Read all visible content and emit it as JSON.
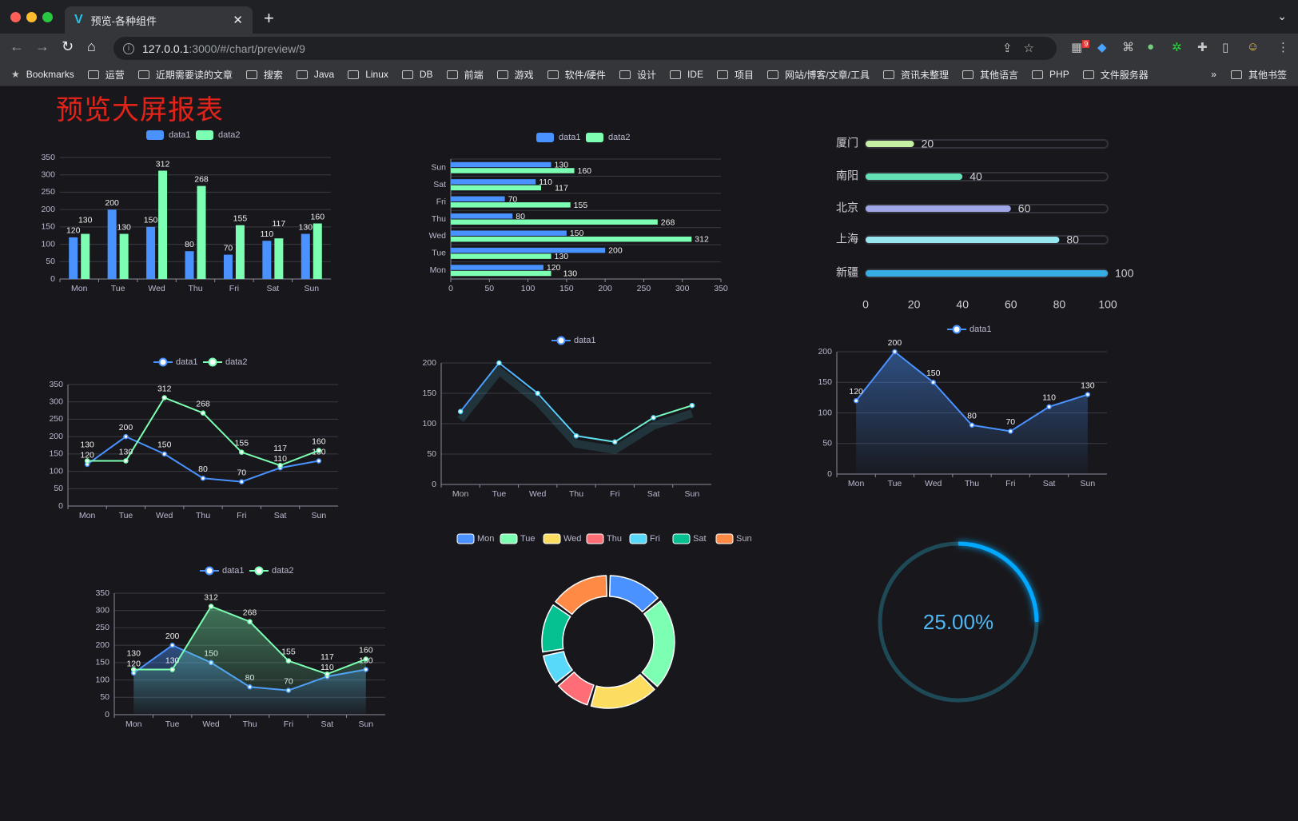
{
  "browser": {
    "tab_title": "预览-各种组件",
    "url_host": "127.0.0.1",
    "url_rest": ":3000/#/chart/preview/9",
    "extension_badge": "9",
    "bookmarks": [
      "Bookmarks",
      "运营",
      "近期需要读的文章",
      "搜索",
      "Java",
      "Linux",
      "DB",
      "前端",
      "游戏",
      "软件/硬件",
      "设计",
      "IDE",
      "项目",
      "网站/博客/文章/工具",
      "资讯未整理",
      "其他语言",
      "PHP",
      "文件服务器"
    ],
    "more_bookmarks": "»",
    "other_bookmarks": "其他书签"
  },
  "page": {
    "title": "预览大屏报表"
  },
  "colors": {
    "data1": "#4992ff",
    "data2": "#7cffb2",
    "background": "#18181c",
    "title": "#e2231a",
    "gauge": "#00a8ff"
  },
  "chart_data": [
    {
      "type": "bar",
      "categories": [
        "Mon",
        "Tue",
        "Wed",
        "Thu",
        "Fri",
        "Sat",
        "Sun"
      ],
      "ylim": [
        0,
        350
      ],
      "yticks": [
        0,
        50,
        100,
        150,
        200,
        250,
        300,
        350
      ],
      "legend": "top",
      "series": [
        {
          "name": "data1",
          "values": [
            120,
            200,
            150,
            80,
            70,
            110,
            130
          ]
        },
        {
          "name": "data2",
          "values": [
            130,
            130,
            312,
            268,
            155,
            117,
            160
          ]
        }
      ]
    },
    {
      "type": "bar",
      "orientation": "horizontal",
      "categories": [
        "Mon",
        "Tue",
        "Wed",
        "Thu",
        "Fri",
        "Sat",
        "Sun"
      ],
      "xlim": [
        0,
        350
      ],
      "xticks": [
        0,
        50,
        100,
        150,
        200,
        250,
        300,
        350
      ],
      "legend": "top",
      "series": [
        {
          "name": "data1",
          "values": [
            120,
            200,
            150,
            80,
            70,
            110,
            130
          ]
        },
        {
          "name": "data2",
          "values": [
            130,
            130,
            312,
            268,
            155,
            117,
            160
          ]
        }
      ]
    },
    {
      "type": "bar",
      "orientation": "horizontal",
      "style": "progress",
      "categories": [
        "厦门",
        "南阳",
        "北京",
        "上海",
        "新疆"
      ],
      "values": [
        20,
        40,
        60,
        80,
        100
      ],
      "xlim": [
        0,
        100
      ],
      "xticks": [
        0,
        20,
        40,
        60,
        80,
        100
      ],
      "colors": [
        "#c5f0a4",
        "#62e0b4",
        "#9ea6e8",
        "#96e8ee",
        "#36aee4"
      ]
    },
    {
      "type": "line",
      "categories": [
        "Mon",
        "Tue",
        "Wed",
        "Thu",
        "Fri",
        "Sat",
        "Sun"
      ],
      "ylim": [
        0,
        350
      ],
      "yticks": [
        0,
        50,
        100,
        150,
        200,
        250,
        300,
        350
      ],
      "legend": "top",
      "series": [
        {
          "name": "data1",
          "values": [
            120,
            200,
            150,
            80,
            70,
            110,
            130
          ]
        },
        {
          "name": "data2",
          "values": [
            130,
            130,
            312,
            268,
            155,
            117,
            160
          ]
        }
      ]
    },
    {
      "type": "line",
      "categories": [
        "Mon",
        "Tue",
        "Wed",
        "Thu",
        "Fri",
        "Sat",
        "Sun"
      ],
      "ylim": [
        0,
        200
      ],
      "yticks": [
        0,
        50,
        100,
        150,
        200
      ],
      "legend": "top",
      "series": [
        {
          "name": "data1",
          "values": [
            120,
            200,
            150,
            80,
            70,
            110,
            130
          ]
        }
      ]
    },
    {
      "type": "area",
      "categories": [
        "Mon",
        "Tue",
        "Wed",
        "Thu",
        "Fri",
        "Sat",
        "Sun"
      ],
      "ylim": [
        0,
        200
      ],
      "yticks": [
        0,
        50,
        100,
        150,
        200
      ],
      "legend": "top",
      "series": [
        {
          "name": "data1",
          "values": [
            120,
            200,
            150,
            80,
            70,
            110,
            130
          ]
        }
      ]
    },
    {
      "type": "area",
      "categories": [
        "Mon",
        "Tue",
        "Wed",
        "Thu",
        "Fri",
        "Sat",
        "Sun"
      ],
      "ylim": [
        0,
        350
      ],
      "yticks": [
        0,
        50,
        100,
        150,
        200,
        250,
        300,
        350
      ],
      "legend": "top",
      "series": [
        {
          "name": "data1",
          "values": [
            120,
            200,
            150,
            80,
            70,
            110,
            130
          ]
        },
        {
          "name": "data2",
          "values": [
            130,
            130,
            312,
            268,
            155,
            117,
            160
          ]
        }
      ]
    },
    {
      "type": "pie",
      "donut": true,
      "categories": [
        "Mon",
        "Tue",
        "Wed",
        "Thu",
        "Fri",
        "Sat",
        "Sun"
      ],
      "values": [
        120,
        200,
        150,
        80,
        70,
        110,
        130
      ],
      "colors": [
        "#4992ff",
        "#7cffb2",
        "#fddd60",
        "#ff6e76",
        "#58d9f9",
        "#05c091",
        "#ff8a45"
      ],
      "legend": "top"
    },
    {
      "type": "gauge",
      "value": 25,
      "label": "25.00%"
    }
  ]
}
